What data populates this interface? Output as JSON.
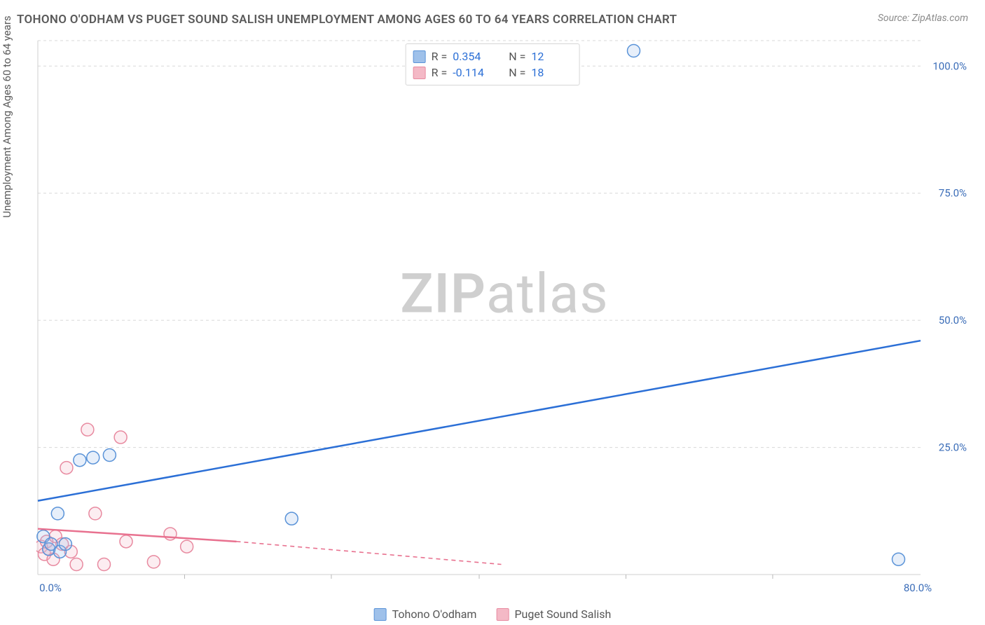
{
  "title": "TOHONO O'ODHAM VS PUGET SOUND SALISH UNEMPLOYMENT AMONG AGES 60 TO 64 YEARS CORRELATION CHART",
  "source_label": "Source: ZipAtlas.com",
  "ylabel": "Unemployment Among Ages 60 to 64 years",
  "watermark_bold": "ZIP",
  "watermark_rest": "atlas",
  "chart": {
    "type": "scatter-correlation",
    "background_color": "#ffffff",
    "grid_color": "#d8d8d8",
    "axis_color": "#cfcfcf",
    "tick_label_color": "#3b6db8",
    "xlim": [
      0,
      80
    ],
    "ylim": [
      0,
      105
    ],
    "yticks": [
      25,
      50,
      75,
      100
    ],
    "ytick_labels": [
      "25.0%",
      "50.0%",
      "75.0%",
      "100.0%"
    ],
    "xticks": [
      0,
      80
    ],
    "xtick_labels": [
      "0.0%",
      "80.0%"
    ],
    "xtick_minor": [
      13.3,
      26.6,
      40,
      53.3,
      66.6
    ],
    "marker_radius": 9,
    "marker_fill_opacity": 0.25,
    "trend_line_width": 2.5,
    "series": [
      {
        "name": "Tohono O'odham",
        "color_fill": "#9fc1ea",
        "color_stroke": "#5a93d8",
        "trend_color": "#2b6fd6",
        "r_value": "0.354",
        "n_value": "12",
        "points": [
          {
            "x": 0.5,
            "y": 7.5
          },
          {
            "x": 1.0,
            "y": 5.0
          },
          {
            "x": 1.2,
            "y": 6.0
          },
          {
            "x": 1.8,
            "y": 12.0
          },
          {
            "x": 2.0,
            "y": 4.5
          },
          {
            "x": 2.5,
            "y": 6.0
          },
          {
            "x": 3.8,
            "y": 22.5
          },
          {
            "x": 5.0,
            "y": 23.0
          },
          {
            "x": 6.5,
            "y": 23.5
          },
          {
            "x": 23.0,
            "y": 11.0
          },
          {
            "x": 54.0,
            "y": 103.0
          },
          {
            "x": 78.0,
            "y": 3.0
          }
        ],
        "trend": {
          "x1": 0,
          "y1": 14.5,
          "x2": 80,
          "y2": 46.0
        }
      },
      {
        "name": "Puget Sound Salish",
        "color_fill": "#f4b9c6",
        "color_stroke": "#e88aa0",
        "trend_color": "#e8718f",
        "r_value": "-0.114",
        "n_value": "18",
        "points": [
          {
            "x": 0.3,
            "y": 5.5
          },
          {
            "x": 0.6,
            "y": 4.0
          },
          {
            "x": 0.8,
            "y": 6.5
          },
          {
            "x": 1.0,
            "y": 5.0
          },
          {
            "x": 1.4,
            "y": 3.0
          },
          {
            "x": 1.6,
            "y": 7.5
          },
          {
            "x": 2.2,
            "y": 6.0
          },
          {
            "x": 2.6,
            "y": 21.0
          },
          {
            "x": 3.0,
            "y": 4.5
          },
          {
            "x": 3.5,
            "y": 2.0
          },
          {
            "x": 4.5,
            "y": 28.5
          },
          {
            "x": 5.2,
            "y": 12.0
          },
          {
            "x": 6.0,
            "y": 2.0
          },
          {
            "x": 7.5,
            "y": 27.0
          },
          {
            "x": 8.0,
            "y": 6.5
          },
          {
            "x": 10.5,
            "y": 2.5
          },
          {
            "x": 12.0,
            "y": 8.0
          },
          {
            "x": 13.5,
            "y": 5.5
          }
        ],
        "trend_solid": {
          "x1": 0,
          "y1": 9.0,
          "x2": 18,
          "y2": 6.5
        },
        "trend_dashed": {
          "x1": 18,
          "y1": 6.5,
          "x2": 42,
          "y2": 2.0
        }
      }
    ],
    "legend": {
      "series1_label": "Tohono O'odham",
      "series2_label": "Puget Sound Salish"
    },
    "stats_box": {
      "r_label": "R =",
      "n_label": "N ="
    }
  }
}
